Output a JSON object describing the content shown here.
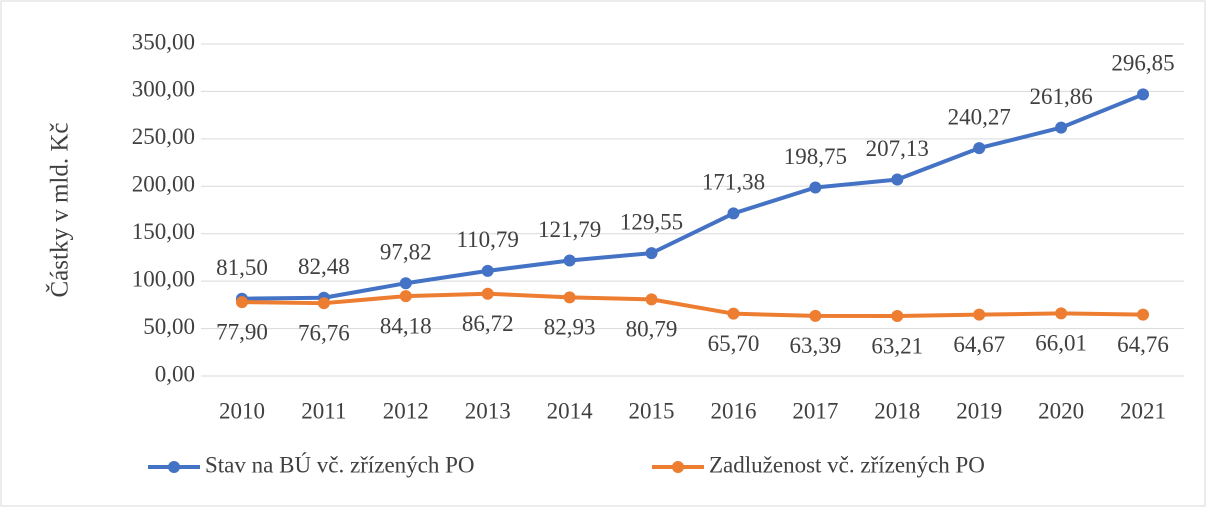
{
  "chart_data": {
    "type": "line",
    "y_label": "Částky v mld. Kč",
    "categories": [
      "2010",
      "2011",
      "2012",
      "2013",
      "2014",
      "2015",
      "2016",
      "2017",
      "2018",
      "2019",
      "2020",
      "2021"
    ],
    "series": [
      {
        "name": "Stav na BÚ vč. zřízených PO",
        "color": "#4472c4",
        "values": [
          81.5,
          82.48,
          97.82,
          110.79,
          121.79,
          129.55,
          171.38,
          198.75,
          207.13,
          240.27,
          261.86,
          296.85
        ],
        "value_labels": [
          "81,50",
          "82,48",
          "97,82",
          "110,79",
          "121,79",
          "129,55",
          "171,38",
          "198,75",
          "207,13",
          "240,27",
          "261,86",
          "296,85"
        ]
      },
      {
        "name": "Zadluženost vč. zřízených PO",
        "color": "#ed7d31",
        "values": [
          77.9,
          76.76,
          84.18,
          86.72,
          82.93,
          80.79,
          65.7,
          63.39,
          63.21,
          64.67,
          66.01,
          64.76
        ],
        "value_labels": [
          "77,90",
          "76,76",
          "84,18",
          "86,72",
          "82,93",
          "80,79",
          "65,70",
          "63,39",
          "63,21",
          "64,67",
          "66,01",
          "64,76"
        ]
      }
    ],
    "ylim": [
      0,
      350
    ],
    "yticks": [
      {
        "value": 0,
        "label": "0,00"
      },
      {
        "value": 50,
        "label": "50,00"
      },
      {
        "value": 100,
        "label": "100,00"
      },
      {
        "value": 150,
        "label": "150,00"
      },
      {
        "value": 200,
        "label": "200,00"
      },
      {
        "value": 250,
        "label": "250,00"
      },
      {
        "value": 300,
        "label": "300,00"
      },
      {
        "value": 350,
        "label": "350,00"
      }
    ],
    "grid": true,
    "legend": "bottom"
  }
}
